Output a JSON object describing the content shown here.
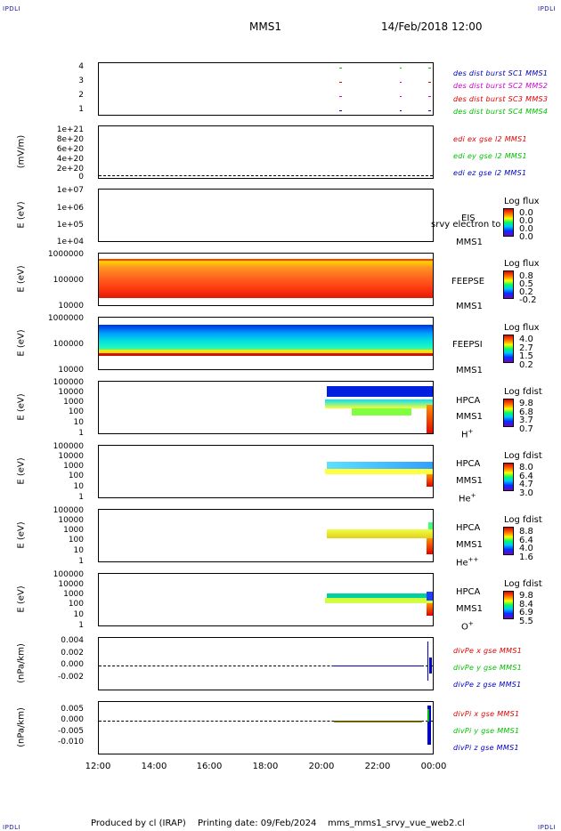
{
  "corner_label": "IPDLI",
  "header": {
    "spacecraft": "MMS1",
    "datetime": "14/Feb/2018 12:00"
  },
  "footer": {
    "produced_by": "Produced by cl (IRAP)",
    "printing_date": "Printing date: 09/Feb/2024",
    "file": "mms_mms1_srvy_vue_web2.cl"
  },
  "x_ticks": [
    "12:00",
    "14:00",
    "16:00",
    "18:00",
    "20:00",
    "22:00",
    "00:00"
  ],
  "panels": {
    "p1": {
      "yticks": [
        "4",
        "3",
        "2",
        "1"
      ],
      "legend": [
        {
          "text": "des dist burst SC1 MMS1",
          "color": "#0000c0"
        },
        {
          "text": "des dist burst SC2 MMS2",
          "color": "#d000d0"
        },
        {
          "text": "des dist burst SC3 MMS3",
          "color": "#e00000"
        },
        {
          "text": "des dist burst SC4 MMS4",
          "color": "#00c000"
        }
      ]
    },
    "p2": {
      "ylabel": "(mV/m)",
      "yticks": [
        "1e+21",
        "8e+20",
        "6e+20",
        "4e+20",
        "2e+20",
        "0"
      ],
      "legend": [
        {
          "text": "edi ex gse l2 MMS1",
          "color": "#e00000"
        },
        {
          "text": "edi ey gse l2 MMS1",
          "color": "#00c000"
        },
        {
          "text": "edi ez gse l2 MMS1",
          "color": "#0000c0"
        }
      ]
    },
    "p3": {
      "ylabel": "E (eV)",
      "yticks": [
        "1e+07",
        "1e+06",
        "1e+05",
        "1e+04"
      ],
      "inst": "EIS",
      "overlay": "srvy electron to",
      "sc": "MMS1",
      "cb_title": "Log flux",
      "cb_vals": [
        "0.0",
        "0.0",
        "0.0",
        "0.0"
      ]
    },
    "p4": {
      "ylabel": "E (eV)",
      "yticks": [
        "1000000",
        "100000",
        "10000"
      ],
      "inst": "FEEPSE",
      "sc": "MMS1",
      "cb_title": "Log flux",
      "cb_vals": [
        "0.8",
        "0.5",
        "0.2",
        "-0.2"
      ]
    },
    "p5": {
      "ylabel": "E (eV)",
      "yticks": [
        "1000000",
        "100000",
        "10000"
      ],
      "inst": "FEEPSI",
      "sc": "MMS1",
      "cb_title": "Log flux",
      "cb_vals": [
        "4.0",
        "2.7",
        "1.5",
        "0.2"
      ]
    },
    "p6": {
      "ylabel": "E (eV)",
      "yticks": [
        "100000",
        "10000",
        "1000",
        "100",
        "10",
        "1"
      ],
      "inst": "HPCA",
      "sc": "MMS1",
      "species": "H",
      "species_sup": "+",
      "cb_title": "Log fdist",
      "cb_vals": [
        "9.8",
        "6.8",
        "3.7",
        "0.7"
      ]
    },
    "p7": {
      "ylabel": "E (eV)",
      "yticks": [
        "100000",
        "10000",
        "1000",
        "100",
        "10",
        "1"
      ],
      "inst": "HPCA",
      "sc": "MMS1",
      "species": "He",
      "species_sup": "+",
      "cb_title": "Log fdist",
      "cb_vals": [
        "8.0",
        "6.4",
        "4.7",
        "3.0"
      ]
    },
    "p8": {
      "ylabel": "E (eV)",
      "yticks": [
        "100000",
        "10000",
        "1000",
        "100",
        "10",
        "1"
      ],
      "inst": "HPCA",
      "sc": "MMS1",
      "species": "He",
      "species_sup": "++",
      "cb_title": "Log fdist",
      "cb_vals": [
        "8.8",
        "6.4",
        "4.0",
        "1.6"
      ]
    },
    "p9": {
      "ylabel": "E (eV)",
      "yticks": [
        "100000",
        "10000",
        "1000",
        "100",
        "10",
        "1"
      ],
      "inst": "HPCA",
      "sc": "MMS1",
      "species": "O",
      "species_sup": "+",
      "cb_title": "Log fdist",
      "cb_vals": [
        "9.8",
        "8.4",
        "6.9",
        "5.5"
      ]
    },
    "p10": {
      "ylabel": "(nPa/km)",
      "yticks": [
        "0.004",
        "0.002",
        "0.000",
        "-0.002"
      ],
      "legend": [
        {
          "text": "divPe x gse MMS1",
          "color": "#e00000"
        },
        {
          "text": "divPe y gse MMS1",
          "color": "#00c000"
        },
        {
          "text": "divPe z gse MMS1",
          "color": "#0000c0"
        }
      ]
    },
    "p11": {
      "ylabel": "(nPa/km)",
      "yticks": [
        "0.005",
        "0.000",
        "-0.005",
        "-0.010"
      ],
      "legend": [
        {
          "text": "divPi x gse MMS1",
          "color": "#e00000"
        },
        {
          "text": "divPi y gse MMS1",
          "color": "#00c000"
        },
        {
          "text": "divPi z gse MMS1",
          "color": "#0000c0"
        }
      ]
    }
  },
  "chart_data": {
    "type": "heatmap",
    "title": "MMS1",
    "x_range": [
      "12:00",
      "00:00"
    ],
    "x_ticks": [
      "12:00",
      "14:00",
      "16:00",
      "18:00",
      "20:00",
      "22:00",
      "00:00"
    ],
    "panels": [
      {
        "name": "des dist burst",
        "type": "scatter",
        "ylim": [
          1,
          4
        ]
      },
      {
        "name": "edi e gse l2",
        "type": "line",
        "ylabel": "(mV/m)",
        "ylim": [
          0,
          1e+21
        ]
      },
      {
        "name": "EIS",
        "type": "heatmap",
        "ylabel": "E (eV)",
        "ylim": [
          10000.0,
          10000000.0
        ],
        "colorbar": "Log flux"
      },
      {
        "name": "FEEPSE",
        "type": "heatmap",
        "ylabel": "E (eV)",
        "ylim": [
          10000.0,
          1000000.0
        ],
        "colorbar": "Log flux"
      },
      {
        "name": "FEEPSI",
        "type": "heatmap",
        "ylabel": "E (eV)",
        "ylim": [
          10000.0,
          1000000.0
        ],
        "colorbar": "Log flux"
      },
      {
        "name": "HPCA H+",
        "type": "heatmap",
        "ylabel": "E (eV)",
        "ylim": [
          1,
          100000.0
        ],
        "colorbar": "Log fdist"
      },
      {
        "name": "HPCA He+",
        "type": "heatmap",
        "ylabel": "E (eV)",
        "ylim": [
          1,
          100000.0
        ],
        "colorbar": "Log fdist"
      },
      {
        "name": "HPCA He++",
        "type": "heatmap",
        "ylabel": "E (eV)",
        "ylim": [
          1,
          100000.0
        ],
        "colorbar": "Log fdist"
      },
      {
        "name": "HPCA O+",
        "type": "heatmap",
        "ylabel": "E (eV)",
        "ylim": [
          1,
          100000.0
        ],
        "colorbar": "Log fdist"
      },
      {
        "name": "divPe gse",
        "type": "line",
        "ylabel": "(nPa/km)",
        "ylim": [
          -0.003,
          0.004
        ]
      },
      {
        "name": "divPi gse",
        "type": "line",
        "ylabel": "(nPa/km)",
        "ylim": [
          -0.012,
          0.007
        ]
      }
    ]
  }
}
